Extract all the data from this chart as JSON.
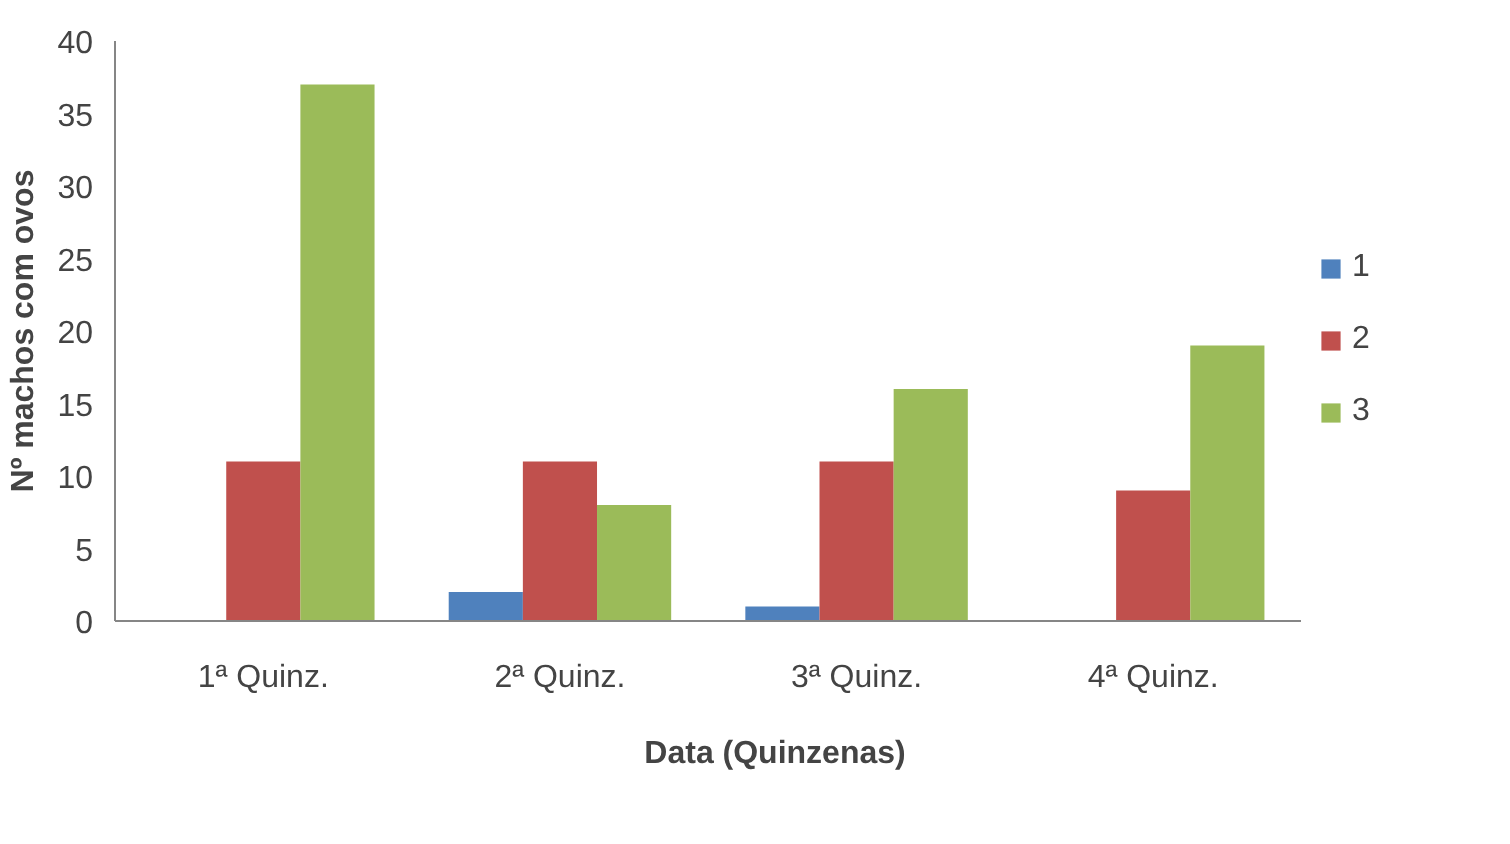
{
  "chart_data": {
    "type": "bar",
    "xlabel": "Data (Quinzenas)",
    "ylabel": "Nº machos com ovos",
    "categories": [
      "1ª Quinz.",
      "2ª Quinz.",
      "3ª Quinz.",
      "4ª Quinz."
    ],
    "series": [
      {
        "name": "1",
        "color": "#4f81bd",
        "values": [
          0,
          2,
          1,
          0
        ]
      },
      {
        "name": "2",
        "color": "#c0504d",
        "values": [
          11,
          11,
          11,
          9
        ]
      },
      {
        "name": "3",
        "color": "#9bbb59",
        "values": [
          37,
          8,
          16,
          19
        ]
      }
    ],
    "ylim": [
      0,
      40
    ],
    "yticks": [
      0,
      5,
      10,
      15,
      20,
      25,
      30,
      35,
      40
    ],
    "grid": false,
    "legend": "right"
  }
}
